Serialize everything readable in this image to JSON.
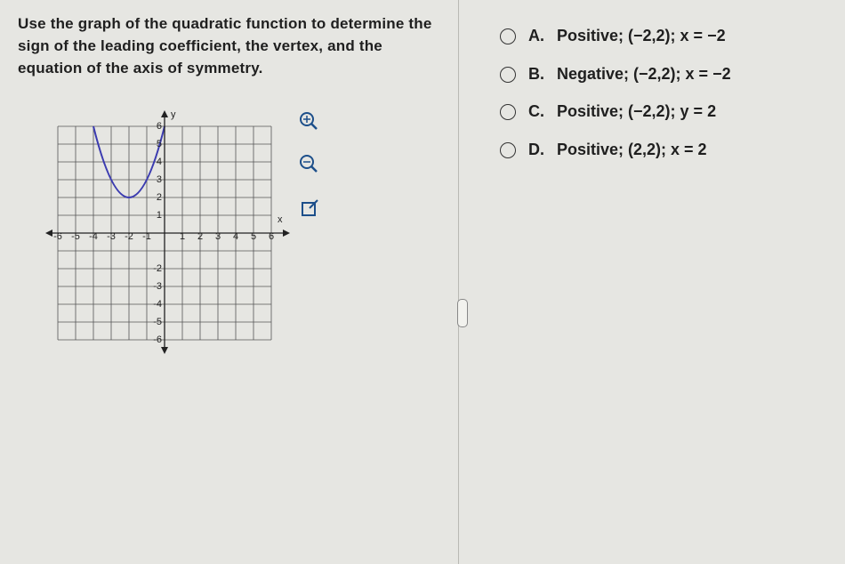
{
  "question": "Use the graph of the quadratic function to determine the sign of the leading coefficient, the vertex, and the equation of the axis of symmetry.",
  "options": [
    {
      "letter": "A.",
      "text": "Positive; (−2,2); x = −2"
    },
    {
      "letter": "B.",
      "text": "Negative; (−2,2); x = −2"
    },
    {
      "letter": "C.",
      "text": "Positive; (−2,2); y = 2"
    },
    {
      "letter": "D.",
      "text": "Positive; (2,2); x = 2"
    }
  ],
  "graph": {
    "x_label": "x",
    "y_label": "y",
    "x_tick_labels": [
      "-6",
      "-5",
      "-4",
      "-3",
      "-2",
      "-1",
      "1",
      "2",
      "3",
      "4",
      "5",
      "6"
    ],
    "y_tick_labels": [
      "6",
      "5",
      "4",
      "3",
      "2",
      "1",
      "-2",
      "-3",
      "-4",
      "-5",
      "-6"
    ]
  }
}
